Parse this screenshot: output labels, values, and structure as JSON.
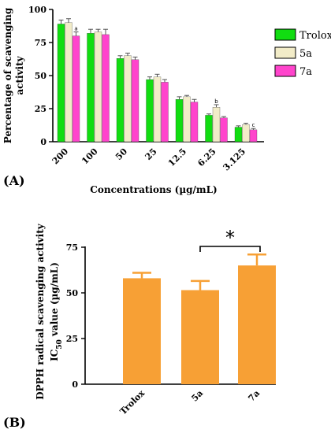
{
  "chart_data": [
    {
      "type": "bar",
      "panel_label": "(A)",
      "categories": [
        "200",
        "100",
        "50",
        "25",
        "12.5",
        "6.25",
        "3.125"
      ],
      "series": [
        {
          "name": "Trolox",
          "color": "#11dd11",
          "values": [
            89,
            82,
            63,
            47,
            32,
            20,
            11
          ],
          "errors": [
            3,
            3,
            2,
            2,
            2,
            1,
            1
          ]
        },
        {
          "name": "5a",
          "color": "#f2ecc8",
          "values": [
            90,
            83,
            65,
            49,
            34,
            26,
            13
          ],
          "errors": [
            3,
            2,
            2,
            2,
            1,
            2,
            1
          ]
        },
        {
          "name": "7a",
          "color": "#ff44cc",
          "values": [
            80,
            81,
            62,
            45,
            30,
            18,
            9
          ],
          "errors": [
            3,
            4,
            2,
            2,
            2,
            1,
            1
          ]
        }
      ],
      "annotations": [
        {
          "category": "200",
          "series": "7a",
          "text": "a"
        },
        {
          "category": "6.25",
          "series": "5a",
          "text": "b"
        },
        {
          "category": "3.125",
          "series": "7a",
          "text": "c"
        }
      ],
      "ylim": [
        0,
        100
      ],
      "yticks": [
        0,
        25,
        50,
        75,
        100
      ],
      "ylabel": "Percentage of scavenging activity",
      "xlabel": "Concentrations (µg/mL)",
      "legend_position": "right"
    },
    {
      "type": "bar",
      "panel_label": "(B)",
      "categories": [
        "Trolox",
        "5a",
        "7a"
      ],
      "values": [
        58,
        51.5,
        65
      ],
      "errors": [
        3,
        5,
        6
      ],
      "color": "#f7a035",
      "ylim": [
        0,
        75
      ],
      "yticks": [
        0,
        25,
        50,
        75
      ],
      "ylabel_line1": "DPPH radical scavenging activity",
      "ylabel_line2_prefix": "IC",
      "ylabel_line2_sub": "50",
      "ylabel_line2_suffix": " value (µg/mL)",
      "significance": {
        "from": "5a",
        "to": "7a",
        "marker": "*"
      }
    }
  ]
}
